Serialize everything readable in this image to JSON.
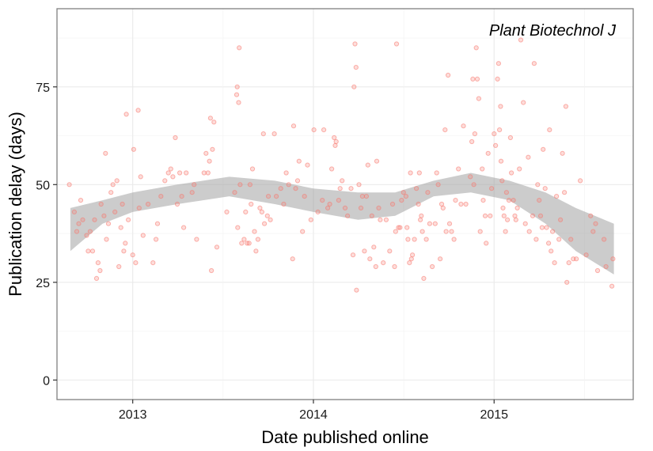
{
  "chart_data": {
    "type": "scatter",
    "title": "",
    "annotation": "Plant Biotechnol J",
    "xlabel": "Date published online",
    "ylabel": "Publication delay (days)",
    "x_axis_type": "date",
    "xlim": [
      "2012-08-01",
      "2015-10-09"
    ],
    "ylim": [
      -5,
      95
    ],
    "xticks": [
      {
        "label": "2013",
        "date": "2013-01-01"
      },
      {
        "label": "2014",
        "date": "2014-01-01"
      },
      {
        "label": "2015",
        "date": "2015-01-01"
      }
    ],
    "yticks": [
      0,
      25,
      50,
      75
    ],
    "grid": true,
    "legend": "none",
    "colors": {
      "points_fill": "#f8766d",
      "points_stroke": "#f8766d",
      "band": "#999999",
      "grid": "#ebebeb",
      "panel_border": "#7f7f7f"
    },
    "smooth_band": [
      {
        "x": "2012-08-28",
        "lo": 33,
        "hi": 44
      },
      {
        "x": "2012-11-01",
        "lo": 40,
        "hi": 46
      },
      {
        "x": "2013-01-01",
        "lo": 43,
        "hi": 48
      },
      {
        "x": "2013-04-01",
        "lo": 45,
        "hi": 50
      },
      {
        "x": "2013-07-15",
        "lo": 47,
        "hi": 52
      },
      {
        "x": "2013-10-15",
        "lo": 45,
        "hi": 51
      },
      {
        "x": "2014-01-01",
        "lo": 43,
        "hi": 49
      },
      {
        "x": "2014-04-01",
        "lo": 41,
        "hi": 48
      },
      {
        "x": "2014-06-15",
        "lo": 42,
        "hi": 48
      },
      {
        "x": "2014-09-01",
        "lo": 47,
        "hi": 51
      },
      {
        "x": "2014-11-15",
        "lo": 48,
        "hi": 53
      },
      {
        "x": "2015-02-01",
        "lo": 46,
        "hi": 51
      },
      {
        "x": "2015-04-15",
        "lo": 40,
        "hi": 48
      },
      {
        "x": "2015-06-15",
        "lo": 33,
        "hi": 44
      },
      {
        "x": "2015-08-31",
        "lo": 27,
        "hi": 40
      }
    ],
    "series": [
      {
        "points": [
          [
            "2012-08-26",
            50
          ],
          [
            "2012-09-05",
            43
          ],
          [
            "2012-09-10",
            38
          ],
          [
            "2012-09-14",
            40
          ],
          [
            "2012-09-18",
            46
          ],
          [
            "2012-09-22",
            41
          ],
          [
            "2012-09-30",
            37
          ],
          [
            "2012-10-03",
            33
          ],
          [
            "2012-10-07",
            38
          ],
          [
            "2012-10-12",
            33
          ],
          [
            "2012-10-16",
            41
          ],
          [
            "2012-10-20",
            26
          ],
          [
            "2012-10-23",
            30
          ],
          [
            "2012-10-27",
            28
          ],
          [
            "2012-10-29",
            45
          ],
          [
            "2012-11-04",
            42
          ],
          [
            "2012-11-07",
            58
          ],
          [
            "2012-11-09",
            36
          ],
          [
            "2012-11-13",
            40
          ],
          [
            "2012-11-18",
            48
          ],
          [
            "2012-11-22",
            50
          ],
          [
            "2012-11-26",
            43
          ],
          [
            "2012-11-30",
            51
          ],
          [
            "2012-12-04",
            29
          ],
          [
            "2012-12-08",
            39
          ],
          [
            "2012-12-11",
            45
          ],
          [
            "2012-12-14",
            33
          ],
          [
            "2012-12-17",
            35
          ],
          [
            "2012-12-19",
            68
          ],
          [
            "2012-12-23",
            41
          ],
          [
            "2013-01-01",
            32
          ],
          [
            "2013-01-03",
            59
          ],
          [
            "2013-01-07",
            30
          ],
          [
            "2013-01-12",
            69
          ],
          [
            "2013-01-14",
            44
          ],
          [
            "2013-01-17",
            52
          ],
          [
            "2013-01-22",
            37
          ],
          [
            "2013-02-01",
            45
          ],
          [
            "2013-02-11",
            30
          ],
          [
            "2013-02-17",
            36
          ],
          [
            "2013-02-20",
            40
          ],
          [
            "2013-02-27",
            47
          ],
          [
            "2013-03-07",
            51
          ],
          [
            "2013-03-14",
            53
          ],
          [
            "2013-03-19",
            54
          ],
          [
            "2013-03-23",
            52
          ],
          [
            "2013-03-28",
            62
          ],
          [
            "2013-04-01",
            45
          ],
          [
            "2013-04-06",
            53
          ],
          [
            "2013-04-10",
            47
          ],
          [
            "2013-04-14",
            39
          ],
          [
            "2013-04-19",
            53
          ],
          [
            "2013-05-01",
            48
          ],
          [
            "2013-05-05",
            50
          ],
          [
            "2013-05-10",
            36
          ],
          [
            "2013-05-25",
            53
          ],
          [
            "2013-05-29",
            58
          ],
          [
            "2013-06-02",
            53
          ],
          [
            "2013-06-05",
            56
          ],
          [
            "2013-06-07",
            67
          ],
          [
            "2013-06-09",
            28
          ],
          [
            "2013-06-11",
            59
          ],
          [
            "2013-06-14",
            66
          ],
          [
            "2013-06-20",
            34
          ],
          [
            "2013-07-10",
            43
          ],
          [
            "2013-07-26",
            48
          ],
          [
            "2013-07-30",
            73
          ],
          [
            "2013-07-31",
            75
          ],
          [
            "2013-08-01",
            39
          ],
          [
            "2013-08-03",
            71
          ],
          [
            "2013-08-04",
            85
          ],
          [
            "2013-08-06",
            50
          ],
          [
            "2013-08-09",
            35
          ],
          [
            "2013-08-14",
            36
          ],
          [
            "2013-08-17",
            43
          ],
          [
            "2013-08-20",
            35
          ],
          [
            "2013-08-24",
            35
          ],
          [
            "2013-08-26",
            50
          ],
          [
            "2013-08-28",
            45
          ],
          [
            "2013-08-31",
            54
          ],
          [
            "2013-09-04",
            38
          ],
          [
            "2013-09-07",
            33
          ],
          [
            "2013-09-11",
            36
          ],
          [
            "2013-09-15",
            44
          ],
          [
            "2013-09-19",
            43
          ],
          [
            "2013-09-22",
            63
          ],
          [
            "2013-09-24",
            40
          ],
          [
            "2013-09-30",
            42
          ],
          [
            "2013-10-02",
            47
          ],
          [
            "2013-10-06",
            41
          ],
          [
            "2013-10-14",
            63
          ],
          [
            "2013-10-18",
            47
          ],
          [
            "2013-10-27",
            49
          ],
          [
            "2013-11-02",
            45
          ],
          [
            "2013-11-07",
            53
          ],
          [
            "2013-11-12",
            50
          ],
          [
            "2013-11-20",
            31
          ],
          [
            "2013-11-22",
            65
          ],
          [
            "2013-11-26",
            49
          ],
          [
            "2013-11-30",
            51
          ],
          [
            "2013-12-03",
            56
          ],
          [
            "2013-12-10",
            38
          ],
          [
            "2013-12-14",
            47
          ],
          [
            "2013-12-20",
            55
          ],
          [
            "2013-12-27",
            41
          ],
          [
            "2014-01-02",
            64
          ],
          [
            "2014-01-10",
            43
          ],
          [
            "2014-01-19",
            46
          ],
          [
            "2014-01-22",
            64
          ],
          [
            "2014-01-30",
            44
          ],
          [
            "2014-02-03",
            45
          ],
          [
            "2014-02-07",
            54
          ],
          [
            "2014-02-12",
            62
          ],
          [
            "2014-02-14",
            60
          ],
          [
            "2014-02-16",
            61
          ],
          [
            "2014-02-21",
            46
          ],
          [
            "2014-02-24",
            49
          ],
          [
            "2014-02-28",
            51
          ],
          [
            "2014-03-06",
            44
          ],
          [
            "2014-03-11",
            42
          ],
          [
            "2014-03-18",
            49
          ],
          [
            "2014-03-22",
            32
          ],
          [
            "2014-03-24",
            75
          ],
          [
            "2014-03-26",
            86
          ],
          [
            "2014-03-28",
            80
          ],
          [
            "2014-03-29",
            23
          ],
          [
            "2014-04-03",
            50
          ],
          [
            "2014-04-07",
            44
          ],
          [
            "2014-04-10",
            47
          ],
          [
            "2014-04-14",
            33
          ],
          [
            "2014-04-18",
            47
          ],
          [
            "2014-04-21",
            55
          ],
          [
            "2014-04-25",
            31
          ],
          [
            "2014-04-29",
            42
          ],
          [
            "2014-05-03",
            34
          ],
          [
            "2014-05-07",
            29
          ],
          [
            "2014-05-09",
            56
          ],
          [
            "2014-05-13",
            44
          ],
          [
            "2014-05-16",
            41
          ],
          [
            "2014-05-22",
            30
          ],
          [
            "2014-05-28",
            41
          ],
          [
            "2014-06-04",
            33
          ],
          [
            "2014-06-10",
            45
          ],
          [
            "2014-06-14",
            29
          ],
          [
            "2014-06-16",
            38
          ],
          [
            "2014-06-18",
            86
          ],
          [
            "2014-06-22",
            39
          ],
          [
            "2014-06-25",
            39
          ],
          [
            "2014-06-28",
            46
          ],
          [
            "2014-07-02",
            48
          ],
          [
            "2014-07-07",
            47
          ],
          [
            "2014-07-09",
            39
          ],
          [
            "2014-07-11",
            36
          ],
          [
            "2014-07-14",
            30
          ],
          [
            "2014-07-16",
            53
          ],
          [
            "2014-07-18",
            31
          ],
          [
            "2014-07-20",
            32
          ],
          [
            "2014-07-24",
            36
          ],
          [
            "2014-07-28",
            49
          ],
          [
            "2014-08-01",
            45
          ],
          [
            "2014-08-03",
            53
          ],
          [
            "2014-08-05",
            41
          ],
          [
            "2014-08-07",
            42
          ],
          [
            "2014-08-09",
            38
          ],
          [
            "2014-08-12",
            26
          ],
          [
            "2014-08-17",
            36
          ],
          [
            "2014-08-20",
            48
          ],
          [
            "2014-08-24",
            40
          ],
          [
            "2014-08-29",
            29
          ],
          [
            "2014-09-04",
            40
          ],
          [
            "2014-09-07",
            53
          ],
          [
            "2014-09-10",
            50
          ],
          [
            "2014-09-14",
            31
          ],
          [
            "2014-09-17",
            45
          ],
          [
            "2014-09-20",
            44
          ],
          [
            "2014-09-24",
            64
          ],
          [
            "2014-09-26",
            38
          ],
          [
            "2014-09-30",
            78
          ],
          [
            "2014-10-03",
            40
          ],
          [
            "2014-10-07",
            38
          ],
          [
            "2014-10-12",
            36
          ],
          [
            "2014-10-15",
            46
          ],
          [
            "2014-10-21",
            54
          ],
          [
            "2014-10-26",
            45
          ],
          [
            "2014-10-31",
            65
          ],
          [
            "2014-11-05",
            45
          ],
          [
            "2014-11-14",
            52
          ],
          [
            "2014-11-17",
            61
          ],
          [
            "2014-11-19",
            77
          ],
          [
            "2014-11-21",
            50
          ],
          [
            "2014-11-23",
            63
          ],
          [
            "2014-11-26",
            85
          ],
          [
            "2014-11-28",
            77
          ],
          [
            "2014-12-01",
            72
          ],
          [
            "2014-12-04",
            38
          ],
          [
            "2014-12-08",
            54
          ],
          [
            "2014-12-10",
            46
          ],
          [
            "2014-12-14",
            42
          ],
          [
            "2014-12-16",
            35
          ],
          [
            "2014-12-20",
            58
          ],
          [
            "2014-12-24",
            42
          ],
          [
            "2014-12-27",
            49
          ],
          [
            "2015-01-01",
            63
          ],
          [
            "2015-01-04",
            60
          ],
          [
            "2015-01-08",
            77
          ],
          [
            "2015-01-10",
            81
          ],
          [
            "2015-01-12",
            64
          ],
          [
            "2015-01-14",
            70
          ],
          [
            "2015-01-15",
            56
          ],
          [
            "2015-01-17",
            51
          ],
          [
            "2015-01-19",
            44
          ],
          [
            "2015-01-21",
            42
          ],
          [
            "2015-01-24",
            38
          ],
          [
            "2015-01-26",
            48
          ],
          [
            "2015-01-28",
            41
          ],
          [
            "2015-01-31",
            46
          ],
          [
            "2015-02-03",
            62
          ],
          [
            "2015-02-05",
            53
          ],
          [
            "2015-02-09",
            46
          ],
          [
            "2015-02-12",
            42
          ],
          [
            "2015-02-14",
            41
          ],
          [
            "2015-02-17",
            44
          ],
          [
            "2015-02-21",
            54
          ],
          [
            "2015-02-24",
            87
          ],
          [
            "2015-03-01",
            71
          ],
          [
            "2015-03-05",
            40
          ],
          [
            "2015-03-11",
            57
          ],
          [
            "2015-03-13",
            38
          ],
          [
            "2015-03-20",
            42
          ],
          [
            "2015-03-23",
            81
          ],
          [
            "2015-03-27",
            36
          ],
          [
            "2015-03-30",
            50
          ],
          [
            "2015-04-02",
            46
          ],
          [
            "2015-04-05",
            42
          ],
          [
            "2015-04-08",
            39
          ],
          [
            "2015-04-10",
            59
          ],
          [
            "2015-04-14",
            49
          ],
          [
            "2015-04-17",
            39
          ],
          [
            "2015-04-21",
            35
          ],
          [
            "2015-04-23",
            64
          ],
          [
            "2015-04-26",
            33
          ],
          [
            "2015-04-29",
            38
          ],
          [
            "2015-05-03",
            30
          ],
          [
            "2015-05-07",
            47
          ],
          [
            "2015-05-12",
            36
          ],
          [
            "2015-05-15",
            41
          ],
          [
            "2015-05-19",
            58
          ],
          [
            "2015-05-23",
            48
          ],
          [
            "2015-05-26",
            70
          ],
          [
            "2015-05-28",
            25
          ],
          [
            "2015-06-01",
            30
          ],
          [
            "2015-06-05",
            36
          ],
          [
            "2015-06-10",
            31
          ],
          [
            "2015-06-16",
            31
          ],
          [
            "2015-06-24",
            51
          ],
          [
            "2015-07-06",
            32
          ],
          [
            "2015-07-15",
            42
          ],
          [
            "2015-07-20",
            38
          ],
          [
            "2015-07-25",
            40
          ],
          [
            "2015-07-29",
            28
          ],
          [
            "2015-08-11",
            36
          ],
          [
            "2015-08-15",
            29
          ],
          [
            "2015-08-27",
            24
          ],
          [
            "2015-08-29",
            31
          ]
        ]
      }
    ]
  }
}
